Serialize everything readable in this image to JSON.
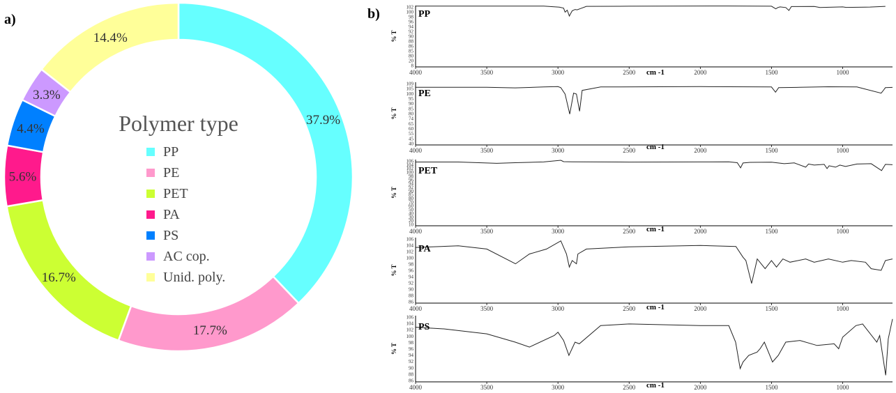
{
  "panels": {
    "a_label": "a)",
    "b_label": "b)"
  },
  "chart_data": [
    {
      "type": "pie",
      "variant": "donut",
      "title": "",
      "center_title": "Polymer type",
      "categories": [
        "PP",
        "PE",
        "PET",
        "PA",
        "PS",
        "AC cop.",
        "Unid. poly."
      ],
      "values": [
        37.9,
        17.7,
        16.7,
        5.6,
        4.4,
        3.3,
        14.4
      ],
      "value_labels": [
        "37.9%",
        "17.7%",
        "16.7%",
        "5.6%",
        "4.4%",
        "3.3%",
        "14.4%"
      ],
      "colors": [
        "#66ffff",
        "#ff99cc",
        "#ccff33",
        "#ff1a8c",
        "#0080ff",
        "#cc99ff",
        "#ffff99"
      ],
      "legend": "center",
      "start_angle_deg": 0,
      "direction": "clockwise"
    },
    {
      "type": "line",
      "title": "",
      "xlabel": "cm -1",
      "ylabel": "% T",
      "x_ticks": [
        "4000",
        "3500",
        "3000",
        "2500",
        "2000",
        "1500",
        "1000"
      ],
      "xlim": [
        4000,
        650
      ],
      "x_reversed": true,
      "grid": false,
      "panels": [
        {
          "name": "PP",
          "y_ticks": [
            "102",
            "100",
            "98",
            "96",
            "94",
            "92",
            "90",
            "88",
            "86",
            "85",
            "80",
            "20",
            "8"
          ],
          "x": [
            4000,
            3100,
            2990,
            2960,
            2950,
            2935,
            2920,
            2900,
            2880,
            2865,
            2840,
            2800,
            2500,
            1800,
            1500,
            1470,
            1455,
            1440,
            1400,
            1378,
            1360,
            1200,
            1160,
            1000,
            975,
            840,
            808,
            700
          ],
          "y": [
            101.2,
            101.2,
            99.5,
            98.0,
            92.0,
            95.0,
            86.0,
            94.0,
            96.0,
            95.5,
            97.5,
            100.8,
            101.0,
            101.4,
            101.0,
            97.0,
            99.0,
            100.0,
            99.0,
            94.5,
            100.5,
            100.6,
            99.0,
            100.0,
            99.2,
            99.6,
            99.8,
            100.8
          ]
        },
        {
          "name": "PE",
          "y_ticks": [
            "109",
            "105",
            "100",
            "95",
            "90",
            "85",
            "80",
            "74",
            "65",
            "60",
            "55",
            "45",
            "40"
          ],
          "x": [
            4000,
            3500,
            3300,
            3100,
            3000,
            2980,
            2950,
            2917,
            2890,
            2870,
            2848,
            2830,
            2700,
            2000,
            1500,
            1472,
            1463,
            1450,
            1300,
            1100,
            900,
            730,
            719,
            700,
            650
          ],
          "y": [
            103.5,
            103.5,
            102.8,
            103.8,
            104.2,
            103.0,
            96.0,
            74.0,
            97.0,
            96.0,
            77.0,
            100.0,
            103.8,
            104.2,
            103.8,
            98.0,
            100.0,
            103.0,
            103.4,
            104.0,
            103.8,
            97.0,
            99.0,
            103.0,
            103.3
          ]
        },
        {
          "name": "PET",
          "y_ticks": [
            "106",
            "104",
            "102",
            "100",
            "98",
            "96",
            "94",
            "92",
            "90",
            "85",
            "80",
            "70",
            "60",
            "50",
            "40",
            "30",
            "20",
            "10"
          ],
          "x": [
            4000,
            3700,
            3430,
            3300,
            3100,
            2980,
            2960,
            2900,
            2500,
            2000,
            1800,
            1740,
            1717,
            1700,
            1650,
            1500,
            1410,
            1340,
            1260,
            1240,
            1200,
            1130,
            1110,
            1095,
            1050,
            1020,
            980,
            900,
            800,
            727,
            700,
            650
          ],
          "y": [
            102.5,
            102.5,
            100.5,
            101.5,
            102.6,
            105.0,
            103.0,
            102.8,
            102.4,
            102.6,
            102.8,
            101.5,
            94.0,
            101.0,
            102.0,
            102.2,
            100.0,
            101.2,
            95.0,
            99.5,
            98.0,
            99.0,
            93.0,
            97.0,
            95.0,
            98.0,
            96.0,
            99.5,
            100.0,
            90.0,
            99.0,
            98.5
          ]
        },
        {
          "name": "PA",
          "y_ticks": [
            "106",
            "104",
            "102",
            "100",
            "98",
            "96",
            "94",
            "92",
            "90",
            "88",
            "86"
          ],
          "x": [
            4000,
            3700,
            3500,
            3298,
            3200,
            3080,
            2980,
            2940,
            2920,
            2900,
            2870,
            2860,
            2800,
            2500,
            2000,
            1750,
            1700,
            1680,
            1640,
            1600,
            1545,
            1500,
            1465,
            1420,
            1370,
            1260,
            1200,
            1100,
            1000,
            940,
            840,
            800,
            730,
            700,
            650
          ],
          "y": [
            103.0,
            103.5,
            102.5,
            98.0,
            101.0,
            102.5,
            105.0,
            101.0,
            97.0,
            99.0,
            98.0,
            101.0,
            102.5,
            103.2,
            103.6,
            103.3,
            100.0,
            99.0,
            92.0,
            99.5,
            96.5,
            99.0,
            97.0,
            99.5,
            98.5,
            99.5,
            98.5,
            99.5,
            98.5,
            99.0,
            98.5,
            96.5,
            96.0,
            99.0,
            99.5
          ]
        },
        {
          "name": "PS",
          "y_ticks": [
            "106",
            "104",
            "102",
            "100",
            "98",
            "96",
            "94",
            "92",
            "90",
            "88",
            "86"
          ],
          "x": [
            4000,
            3800,
            3500,
            3300,
            3200,
            3026,
            3000,
            2960,
            2923,
            2880,
            2850,
            2700,
            2500,
            2000,
            1800,
            1752,
            1720,
            1700,
            1660,
            1601,
            1580,
            1550,
            1493,
            1452,
            1400,
            1300,
            1180,
            1060,
            1028,
            1000,
            907,
            860,
            760,
            740,
            698,
            680,
            650
          ],
          "y": [
            102.5,
            102.0,
            100.5,
            98.0,
            96.5,
            100.0,
            101.0,
            98.5,
            94.0,
            98.0,
            97.5,
            103.0,
            103.5,
            103.0,
            103.0,
            98.0,
            90.0,
            92.0,
            94.0,
            95.0,
            96.0,
            98.0,
            92.0,
            94.0,
            98.0,
            98.5,
            97.0,
            97.5,
            96.0,
            99.5,
            103.0,
            103.5,
            98.0,
            100.0,
            88.0,
            99.0,
            105.0
          ]
        }
      ]
    }
  ]
}
